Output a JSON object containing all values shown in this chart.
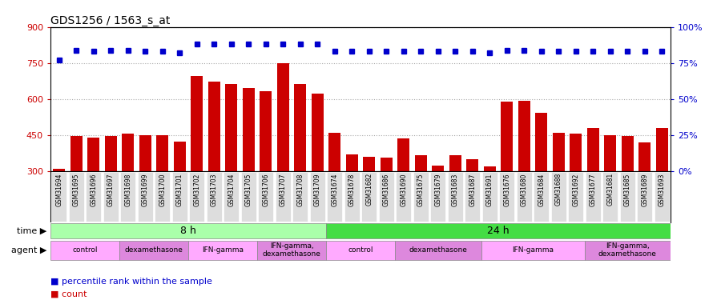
{
  "title": "GDS1256 / 1563_s_at",
  "samples": [
    "GSM31694",
    "GSM31695",
    "GSM31696",
    "GSM31697",
    "GSM31698",
    "GSM31699",
    "GSM31700",
    "GSM31701",
    "GSM31702",
    "GSM31703",
    "GSM31704",
    "GSM31705",
    "GSM31706",
    "GSM31707",
    "GSM31708",
    "GSM31709",
    "GSM31674",
    "GSM31678",
    "GSM31682",
    "GSM31686",
    "GSM31690",
    "GSM31675",
    "GSM31679",
    "GSM31683",
    "GSM31687",
    "GSM31691",
    "GSM31676",
    "GSM31680",
    "GSM31684",
    "GSM31688",
    "GSM31692",
    "GSM31677",
    "GSM31681",
    "GSM31685",
    "GSM31689",
    "GSM31693"
  ],
  "counts": [
    312,
    448,
    440,
    448,
    456,
    452,
    452,
    424,
    696,
    672,
    664,
    648,
    632,
    748,
    664,
    624,
    460,
    370,
    360,
    356,
    436,
    368,
    324,
    366,
    352,
    320,
    590,
    595,
    542,
    460,
    458,
    480,
    450,
    448,
    420,
    480
  ],
  "percentile_ranks": [
    77,
    84,
    83,
    84,
    84,
    83,
    83,
    82,
    88,
    88,
    88,
    88,
    88,
    88,
    88,
    88,
    83,
    83,
    83,
    83,
    83,
    83,
    83,
    83,
    83,
    82,
    84,
    84,
    83,
    83,
    83,
    83,
    83,
    83,
    83,
    83
  ],
  "bar_color": "#cc0000",
  "dot_color": "#0000cc",
  "ylim_left": [
    300,
    900
  ],
  "ylim_right": [
    0,
    100
  ],
  "yticks_left": [
    300,
    450,
    600,
    750,
    900
  ],
  "yticks_right": [
    0,
    25,
    50,
    75,
    100
  ],
  "time_groups": [
    {
      "label": "8 h",
      "start": 0,
      "end": 16,
      "color": "#aaffaa"
    },
    {
      "label": "24 h",
      "start": 16,
      "end": 36,
      "color": "#44dd44"
    }
  ],
  "agent_groups": [
    {
      "label": "control",
      "start": 0,
      "end": 4,
      "color": "#ffaaff"
    },
    {
      "label": "dexamethasone",
      "start": 4,
      "end": 8,
      "color": "#dd88dd"
    },
    {
      "label": "IFN-gamma",
      "start": 8,
      "end": 12,
      "color": "#ffaaff"
    },
    {
      "label": "IFN-gamma,\ndexamethasone",
      "start": 12,
      "end": 16,
      "color": "#dd88dd"
    },
    {
      "label": "control",
      "start": 16,
      "end": 20,
      "color": "#ffaaff"
    },
    {
      "label": "dexamethasone",
      "start": 20,
      "end": 25,
      "color": "#dd88dd"
    },
    {
      "label": "IFN-gamma",
      "start": 25,
      "end": 31,
      "color": "#ffaaff"
    },
    {
      "label": "IFN-gamma,\ndexamethasone",
      "start": 31,
      "end": 36,
      "color": "#dd88dd"
    }
  ],
  "legend_count_color": "#cc0000",
  "legend_pct_color": "#0000cc",
  "bg_color": "#ffffff",
  "axis_label_color": "#cc0000",
  "right_axis_label_color": "#0000cc",
  "gridline_color": "#aaaaaa",
  "xtick_bg_color": "#dddddd",
  "left_label_bg": "#eeeeee"
}
